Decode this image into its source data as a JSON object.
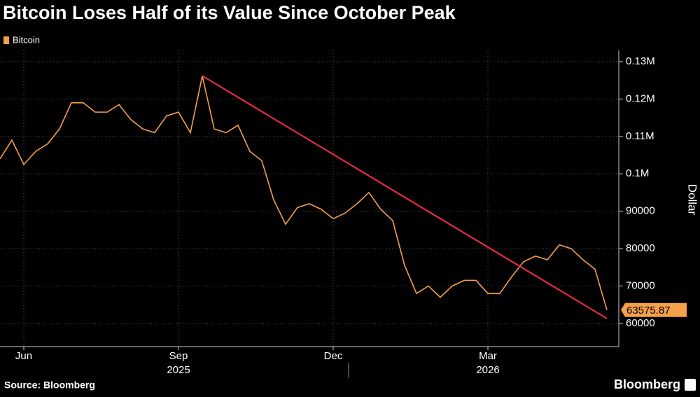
{
  "chart_data": {
    "type": "line",
    "title": "Bitcoin Loses Half of its Value Since October Peak",
    "source": "Source: Bloomberg",
    "brand": "Bloomberg",
    "y_axis_label": "Dollar",
    "categories": [
      null,
      null,
      "Jun",
      null,
      null,
      null,
      null,
      null,
      null,
      null,
      null,
      null,
      null,
      null,
      null,
      "Sep",
      null,
      null,
      null,
      null,
      null,
      null,
      null,
      null,
      null,
      null,
      null,
      null,
      "Dec",
      null,
      null,
      null,
      null,
      null,
      null,
      null,
      null,
      null,
      null,
      null,
      null,
      "Mar",
      null,
      null,
      null,
      null,
      null,
      null,
      null,
      null,
      null,
      null
    ],
    "year_labels": [
      {
        "category": "Sep",
        "label": "2025"
      },
      {
        "category": "Mar",
        "label": "2026"
      }
    ],
    "series": [
      {
        "name": "Bitcoin",
        "color": "#f5a04a",
        "values": [
          104000,
          109000,
          102500,
          106000,
          108000,
          112000,
          119000,
          119000,
          116500,
          116500,
          118500,
          114500,
          112000,
          111000,
          115500,
          116500,
          111000,
          126200,
          112000,
          111000,
          113000,
          106000,
          103500,
          93000,
          86500,
          91000,
          92000,
          90500,
          88000,
          89500,
          92000,
          95000,
          90500,
          87500,
          75500,
          68000,
          70000,
          67000,
          70000,
          71500,
          71500,
          68000,
          68000,
          72500,
          76500,
          78000,
          77000,
          81000,
          80000,
          77000,
          74500,
          63575.87
        ],
        "value_labels": [
          null,
          null,
          null,
          null,
          null,
          null,
          null,
          null,
          null,
          null,
          null,
          null,
          null,
          null,
          null,
          null,
          null,
          null,
          null,
          null,
          null,
          null,
          null,
          null,
          null,
          null,
          null,
          null,
          null,
          null,
          null,
          null,
          null,
          null,
          null,
          null,
          null,
          null,
          null,
          null,
          null,
          null,
          null,
          null,
          null,
          null,
          null,
          null,
          null,
          null,
          null,
          "63575.87"
        ]
      }
    ],
    "trendline": {
      "color": "#ff2a4a",
      "values": [
        126200,
        61300
      ]
    },
    "ylim": [
      53800,
      133000
    ],
    "yticks": [
      {
        "value": 130000,
        "label": "0.13M"
      },
      {
        "value": 120000,
        "label": "0.12M"
      },
      {
        "value": 110000,
        "label": "0.11M"
      },
      {
        "value": 100000,
        "label": "0.1M"
      },
      90000,
      80000,
      70000,
      60000
    ],
    "grid": true
  }
}
